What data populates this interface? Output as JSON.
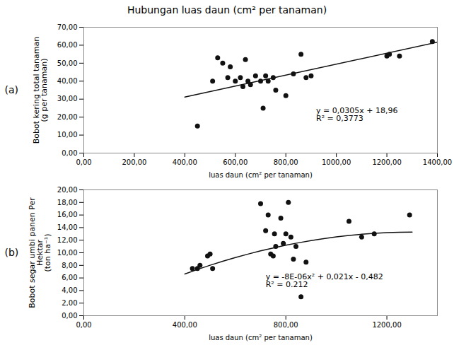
{
  "chart_data": [
    {
      "type": "scatter",
      "title": "Hubungan luas daun (cm² per tanaman)",
      "panel_label": "(a)",
      "x": [
        450,
        510,
        530,
        550,
        570,
        580,
        600,
        620,
        630,
        640,
        650,
        660,
        680,
        700,
        710,
        720,
        730,
        750,
        760,
        800,
        830,
        860,
        880,
        900,
        1200,
        1210,
        1250,
        1380
      ],
      "values": [
        15,
        40,
        53,
        50,
        42,
        48,
        40,
        42,
        37,
        52,
        40,
        38,
        43,
        40,
        25,
        43,
        40,
        42,
        35,
        32,
        44,
        55,
        42,
        43,
        54,
        55,
        54,
        62
      ],
      "color": "#111111",
      "fit": {
        "type": "line",
        "x": [
          400,
          1400
        ],
        "values": [
          31.16,
          61.66
        ],
        "color": "#111111"
      },
      "annotations": [
        {
          "text": "y = 0,0305x + 18,96\nR² = 0,3773",
          "x": 920,
          "y": 18
        }
      ],
      "xlabel": "luas daun (cm² per tanaman)",
      "ylabel": "Bobot kering total tanaman\n(g per tanaman)",
      "xlim": [
        0,
        1400
      ],
      "ylim": [
        0,
        70
      ],
      "xticks": [
        {
          "value": 0,
          "label": "0,00"
        },
        {
          "value": 200,
          "label": "200,00"
        },
        {
          "value": 400,
          "label": "400,00"
        },
        {
          "value": 600,
          "label": "600,00"
        },
        {
          "value": 800,
          "label": "800,00"
        },
        {
          "value": 1000,
          "label": "1000,00"
        },
        {
          "value": 1200,
          "label": "1200,00"
        },
        {
          "value": 1400,
          "label": "1400,00"
        }
      ],
      "yticks": [
        {
          "value": 0,
          "label": "0,00"
        },
        {
          "value": 10,
          "label": "10,00"
        },
        {
          "value": 20,
          "label": "20,00"
        },
        {
          "value": 30,
          "label": "30,00"
        },
        {
          "value": 40,
          "label": "40,00"
        },
        {
          "value": 50,
          "label": "50,00"
        },
        {
          "value": 60,
          "label": "60,00"
        },
        {
          "value": 70,
          "label": "70,00"
        }
      ]
    },
    {
      "type": "scatter",
      "panel_label": "(b)",
      "x": [
        430,
        450,
        460,
        490,
        500,
        510,
        700,
        720,
        730,
        740,
        750,
        755,
        760,
        780,
        790,
        800,
        810,
        820,
        830,
        840,
        860,
        880,
        1050,
        1100,
        1150,
        1290
      ],
      "values": [
        7.5,
        7.5,
        8.0,
        9.5,
        9.8,
        7.5,
        17.8,
        13.5,
        16.0,
        9.8,
        9.5,
        13.0,
        11.0,
        15.5,
        11.5,
        13.0,
        18.0,
        12.5,
        9.0,
        11.0,
        3.0,
        8.5,
        15.0,
        12.5,
        13.0,
        16.0
      ],
      "color": "#111111",
      "fit": {
        "type": "line",
        "x": [
          400,
          450,
          500,
          550,
          600,
          650,
          700,
          750,
          800,
          850,
          900,
          950,
          1000,
          1050,
          1100,
          1150,
          1200,
          1250,
          1300
        ],
        "values": [
          6.638,
          7.348,
          8.018,
          8.648,
          9.238,
          9.788,
          10.298,
          10.768,
          11.198,
          11.588,
          11.938,
          12.248,
          12.518,
          12.748,
          12.938,
          13.088,
          13.198,
          13.268,
          13.298
        ],
        "color": "#111111"
      },
      "annotations": [
        {
          "text": "y = -8E-06x² + 0,021x - 0,482\nR² = 0.212",
          "x": 720,
          "y": 4.5
        }
      ],
      "xlabel": "luas daun (cm² per tanaman)",
      "ylabel": "Bobot segar umbi panen Per\nHektar\n(ton ha⁻¹)",
      "xlim": [
        0,
        1400
      ],
      "ylim": [
        0,
        20
      ],
      "xticks": [
        {
          "value": 0,
          "label": "0,00"
        },
        {
          "value": 400,
          "label": "400,00"
        },
        {
          "value": 800,
          "label": "800,00"
        },
        {
          "value": 1200,
          "label": "1200,00"
        }
      ],
      "yticks": [
        {
          "value": 0,
          "label": "0,00"
        },
        {
          "value": 2,
          "label": "2,00"
        },
        {
          "value": 4,
          "label": "4,00"
        },
        {
          "value": 6,
          "label": "6,00"
        },
        {
          "value": 8,
          "label": "8,00"
        },
        {
          "value": 10,
          "label": "10,00"
        },
        {
          "value": 12,
          "label": "12,00"
        },
        {
          "value": 14,
          "label": "14,00"
        },
        {
          "value": 16,
          "label": "16,00"
        },
        {
          "value": 18,
          "label": "18,00"
        },
        {
          "value": 20,
          "label": "20,00"
        }
      ]
    }
  ]
}
